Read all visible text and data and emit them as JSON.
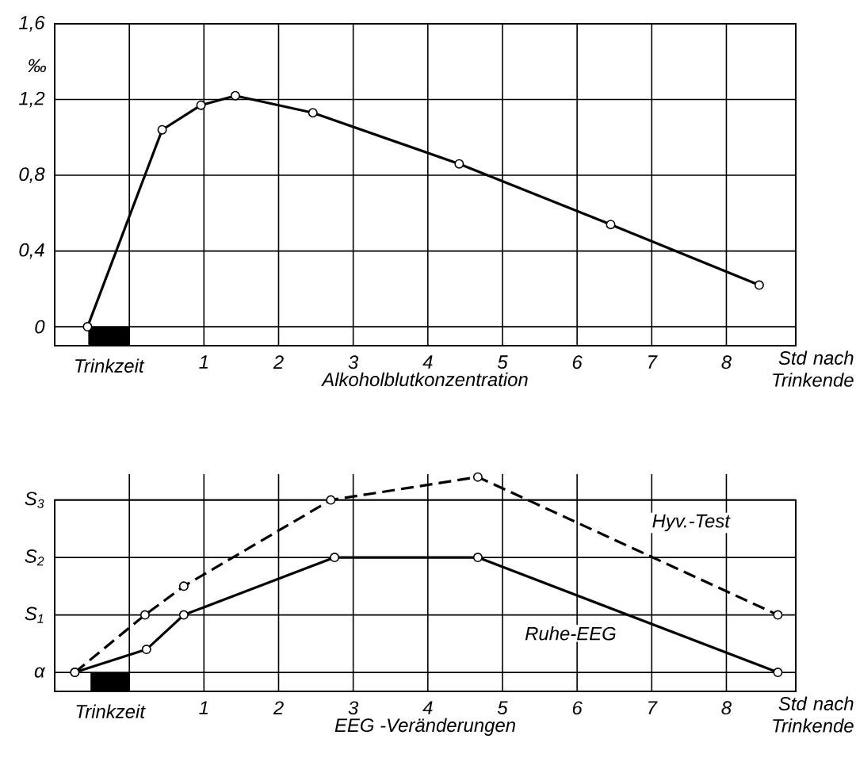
{
  "chart_data": [
    {
      "type": "line",
      "xlabel": "Alkoholblutkonzentration",
      "ylabel": "‰",
      "x": [
        -0.56,
        0.44,
        0.96,
        1.42,
        2.46,
        4.42,
        6.45,
        8.44
      ],
      "values": [
        0,
        1.04,
        1.17,
        1.22,
        1.13,
        0.86,
        0.54,
        0.22
      ],
      "color": "#000000",
      "marker": "circle",
      "line_style": "solid",
      "xlim": [
        -1,
        8.93
      ],
      "ylim": [
        -0.1,
        1.6
      ],
      "xticks": [
        {
          "value": 0,
          "label": null
        },
        1,
        2,
        3,
        4,
        5,
        6,
        7,
        8
      ],
      "yticks": [
        0,
        {
          "value": 0.4,
          "label": "0,4"
        },
        {
          "value": 0.8,
          "label": "0,8"
        },
        {
          "value": 1.2,
          "label": "1,2"
        },
        {
          "value": 1.6,
          "label": "1,6"
        }
      ],
      "grid": true,
      "bands": [
        {
          "axis": "x",
          "from": -0.55,
          "to": 0,
          "label": "Trinkzeit",
          "color": "#000000"
        }
      ],
      "annotations": [
        "Std nach Trinkende"
      ]
    },
    {
      "type": "line",
      "xlabel": "EEG -Veränderungen",
      "series": [
        {
          "name": "Hyv.-Test",
          "color": "#000000",
          "line_style": "dashed",
          "x": [
            -0.73,
            0.21,
            0.73,
            2.7,
            4.67,
            8.69
          ],
          "values": [
            0,
            1,
            1.5,
            3,
            3.4,
            1
          ]
        },
        {
          "name": "Ruhe-EEG",
          "color": "#000000",
          "line_style": "solid",
          "x": [
            -0.73,
            0.23,
            0.73,
            2.75,
            4.67,
            8.69
          ],
          "values": [
            0,
            0.4,
            1,
            2,
            2,
            0
          ]
        }
      ],
      "marker": "circle",
      "xlim": [
        -1,
        8.93
      ],
      "ylim": [
        -0.33,
        3.45
      ],
      "xticks": [
        {
          "value": 0,
          "label": null
        },
        1,
        2,
        3,
        4,
        5,
        6,
        7,
        8
      ],
      "yticks": [
        {
          "value": 0,
          "label": "α"
        },
        {
          "value": 1,
          "label": "S$_{1}$"
        },
        {
          "value": 2,
          "label": "S$_{2}$"
        },
        {
          "value": 3,
          "label": "S$_{3}$"
        }
      ],
      "grid": true,
      "bands": [
        {
          "axis": "x",
          "from": -0.52,
          "to": 0,
          "label": "Trinkzeit",
          "color": "#000000"
        }
      ],
      "annotations": [
        "Std nach Trinkende"
      ]
    }
  ]
}
